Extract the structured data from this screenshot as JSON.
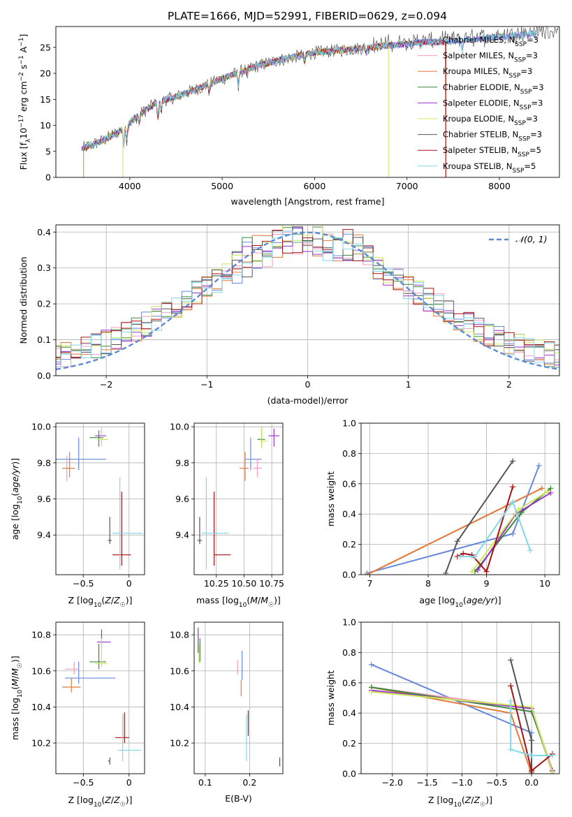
{
  "suptitle": "PLATE=1666, MJD=52991, FIBERID=0629, z=0.094",
  "colors": [
    "#6688dd",
    "#f49ac1",
    "#e07b39",
    "#3a8a3a",
    "#9932cc",
    "#ccea5a",
    "#555555",
    "#aa1111",
    "#7fd8e8"
  ],
  "chart_data": [
    {
      "id": "spectrum",
      "type": "line",
      "xlabel": "wavelength [Angstrom, rest frame]",
      "ylabel": "Flux [fλ10⁻¹⁷ erg cm⁻² s⁻¹ A⁻¹]",
      "xlim": [
        3200,
        8650
      ],
      "ylim": [
        0,
        29
      ],
      "xticks": [
        4000,
        5000,
        6000,
        7000,
        8000
      ],
      "yticks": [
        0,
        5,
        10,
        15,
        20,
        25
      ],
      "grid": false,
      "legend_position": "right",
      "series": [
        {
          "name": "Chabrier MILES, N_SSP=3"
        },
        {
          "name": "Salpeter MILES, N_SSP=3"
        },
        {
          "name": "Kroupa MILES, N_SSP=3"
        },
        {
          "name": "Chabrier ELODIE, N_SSP=3"
        },
        {
          "name": "Salpeter ELODIE, N_SSP=3"
        },
        {
          "name": "Kroupa ELODIE, N_SSP=3"
        },
        {
          "name": "Chabrier STELIB, N_SSP=3"
        },
        {
          "name": "Salpeter STELIB, N_SSP=5"
        },
        {
          "name": "Kroupa STELIB, N_SSP=5"
        }
      ],
      "continuum": {
        "x": [
          3480,
          3700,
          3900,
          4100,
          4300,
          4500,
          4800,
          5000,
          5300,
          5600,
          6000,
          6300,
          6600,
          6900,
          7200,
          7400,
          7700,
          8000,
          8300,
          8600
        ],
        "y": [
          5.5,
          7,
          9,
          12,
          14.5,
          15.5,
          17.5,
          19,
          21,
          22.5,
          24,
          24.5,
          25,
          25.5,
          26,
          26,
          26.5,
          27,
          27.5,
          28
        ]
      }
    },
    {
      "id": "residuals",
      "type": "line",
      "xlabel": "(data-model)/error",
      "ylabel": "Normed distribution",
      "xlim": [
        -2.5,
        2.5
      ],
      "ylim": [
        0,
        0.42
      ],
      "xticks": [
        -2,
        -1,
        0,
        1,
        2
      ],
      "yticks": [
        0.0,
        0.1,
        0.2,
        0.3,
        0.4
      ],
      "grid": true,
      "legend_position": "top-right",
      "legend_label": "𝒩(0, 1)"
    },
    {
      "id": "age_vs_Z",
      "type": "scatter",
      "xlabel": "Z [log₁₀(Z/Z☉)]",
      "ylabel": "age  [log₁₀(age/yr)]",
      "xlim": [
        -0.8,
        0.17
      ],
      "ylim": [
        9.18,
        10.02
      ],
      "xticks": [
        -0.5,
        0.0
      ],
      "yticks": [
        9.4,
        9.6,
        9.8,
        10.0
      ],
      "grid": true,
      "points": [
        {
          "x": -0.55,
          "y": 9.82,
          "xerr": [
            0.25,
            0.3
          ],
          "yerr": [
            0.06,
            0.12
          ]
        },
        {
          "x": -0.68,
          "y": 9.77,
          "xerr": [
            0.04,
            0.08
          ],
          "yerr": [
            0.07,
            0.07
          ]
        },
        {
          "x": -0.65,
          "y": 9.77,
          "xerr": [
            0.08,
            0.06
          ],
          "yerr": [
            0.05,
            0.09
          ]
        },
        {
          "x": -0.33,
          "y": 9.94,
          "xerr": [
            0.1,
            0.05
          ],
          "yerr": [
            0.05,
            0.04
          ]
        },
        {
          "x": -0.3,
          "y": 9.95,
          "xerr": [
            0.07,
            0.05
          ],
          "yerr": [
            0.04,
            0.04
          ]
        },
        {
          "x": -0.3,
          "y": 9.93,
          "xerr": [
            0.05,
            0.07
          ],
          "yerr": [
            0.04,
            0.07
          ]
        },
        {
          "x": -0.21,
          "y": 9.37,
          "xerr": [
            0.02,
            0.02
          ],
          "yerr": [
            0.02,
            0.13
          ]
        },
        {
          "x": -0.08,
          "y": 9.29,
          "xerr": [
            0.1,
            0.1
          ],
          "yerr": [
            0.06,
            0.35
          ]
        },
        {
          "x": -0.1,
          "y": 9.41,
          "xerr": [
            0.08,
            0.25
          ],
          "yerr": [
            0.2,
            0.31
          ]
        }
      ]
    },
    {
      "id": "age_vs_mass",
      "type": "scatter",
      "xlabel": "mass [log₁₀(M/M☉)]",
      "ylabel": "",
      "xlim": [
        10.05,
        10.85
      ],
      "ylim": [
        9.18,
        10.02
      ],
      "xticks": [
        10.25,
        10.5,
        10.75
      ],
      "yticklabels": [
        "9.4",
        "9.6",
        "9.8",
        "10.0"
      ],
      "xticklabels": [
        "10.25",
        "10.50",
        "10.75"
      ],
      "yticks": [
        9.4,
        9.6,
        9.8,
        10.0
      ],
      "grid": true,
      "points": [
        {
          "x": 10.56,
          "y": 9.82,
          "xerr": [
            0.05,
            0.1
          ],
          "yerr": [
            0.06,
            0.12
          ]
        },
        {
          "x": 10.62,
          "y": 9.77,
          "xerr": [
            0.04,
            0.04
          ],
          "yerr": [
            0.05,
            0.05
          ]
        },
        {
          "x": 10.51,
          "y": 9.77,
          "xerr": [
            0.05,
            0.03
          ],
          "yerr": [
            0.07,
            0.09
          ]
        },
        {
          "x": 10.66,
          "y": 9.93,
          "xerr": [
            0.04,
            0.03
          ],
          "yerr": [
            0.04,
            0.07
          ]
        },
        {
          "x": 10.77,
          "y": 9.95,
          "xerr": [
            0.05,
            0.05
          ],
          "yerr": [
            0.06,
            0.04
          ]
        },
        {
          "x": 10.66,
          "y": 9.92,
          "xerr": [
            0.02,
            0.05
          ],
          "yerr": [
            0.04,
            0.08
          ]
        },
        {
          "x": 10.1,
          "y": 9.37,
          "xerr": [
            0.02,
            0.02
          ],
          "yerr": [
            0.02,
            0.13
          ]
        },
        {
          "x": 10.23,
          "y": 9.29,
          "xerr": [
            0.0,
            0.15
          ],
          "yerr": [
            0.06,
            0.35
          ]
        },
        {
          "x": 10.16,
          "y": 9.41,
          "xerr": [
            0.04,
            0.2
          ],
          "yerr": [
            0.2,
            0.31
          ]
        }
      ]
    },
    {
      "id": "weight_vs_age",
      "type": "line",
      "xlabel": "age  [log₁₀(age/yr)]",
      "ylabel": "mass weight",
      "xlim": [
        6.85,
        10.25
      ],
      "ylim": [
        0,
        1
      ],
      "xticks": [
        7,
        8,
        9,
        10
      ],
      "yticks": [
        0.0,
        0.2,
        0.4,
        0.6,
        0.8,
        1.0
      ],
      "grid": true,
      "series": [
        {
          "x": [
            9.5,
            9.9,
            9.45
          ],
          "y": [
            0.27,
            0.72,
            0.28
          ],
          "path": [
            [
              6.95,
              0.01
            ],
            [
              9.45,
              0.27
            ],
            [
              9.9,
              0.72
            ]
          ]
        },
        {
          "path": [
            [
              6.95,
              0.0
            ],
            [
              9.95,
              0.57
            ]
          ]
        },
        {
          "path": [
            [
              6.95,
              0.0
            ],
            [
              9.95,
              0.57
            ]
          ]
        },
        {
          "path": [
            [
              8.8,
              0.02
            ],
            [
              9.6,
              0.41
            ],
            [
              10.1,
              0.57
            ]
          ]
        },
        {
          "path": [
            [
              8.85,
              0.03
            ],
            [
              9.5,
              0.4
            ],
            [
              10.1,
              0.54
            ]
          ]
        },
        {
          "path": [
            [
              8.75,
              0.02
            ],
            [
              9.55,
              0.43
            ],
            [
              10.05,
              0.55
            ]
          ]
        },
        {
          "path": [
            [
              8.3,
              0.01
            ],
            [
              8.5,
              0.22
            ],
            [
              9.45,
              0.75
            ]
          ]
        },
        {
          "path": [
            [
              8.5,
              0.12
            ],
            [
              8.6,
              0.14
            ],
            [
              8.75,
              0.13
            ],
            [
              9.0,
              0.02
            ],
            [
              9.45,
              0.58
            ]
          ]
        },
        {
          "path": [
            [
              8.55,
              0.12
            ],
            [
              8.8,
              0.12
            ],
            [
              9.45,
              0.48
            ],
            [
              9.75,
              0.16
            ]
          ]
        }
      ]
    },
    {
      "id": "mass_vs_Z",
      "type": "scatter",
      "xlabel": "Z [log₁₀(Z/Z☉)]",
      "ylabel": "mass [log₁₀(M/M☉)]",
      "xlim": [
        -0.8,
        0.17
      ],
      "ylim": [
        10.03,
        10.87
      ],
      "xticks": [
        -0.5,
        0.0
      ],
      "yticks": [
        10.2,
        10.4,
        10.6,
        10.8
      ],
      "grid": true,
      "points": [
        {
          "x": -0.55,
          "y": 10.56,
          "xerr": [
            0.15,
            0.4
          ],
          "yerr": [
            0.03,
            0.09
          ]
        },
        {
          "x": -0.6,
          "y": 10.61,
          "xerr": [
            0.1,
            0.05
          ],
          "yerr": [
            0.03,
            0.04
          ]
        },
        {
          "x": -0.63,
          "y": 10.51,
          "xerr": [
            0.1,
            0.1
          ],
          "yerr": [
            0.03,
            0.05
          ]
        },
        {
          "x": -0.33,
          "y": 10.65,
          "xerr": [
            0.1,
            0.08
          ],
          "yerr": [
            0.04,
            0.1
          ]
        },
        {
          "x": -0.3,
          "y": 10.76,
          "xerr": [
            0.05,
            0.1
          ],
          "yerr": [
            0.04,
            0.07
          ]
        },
        {
          "x": -0.3,
          "y": 10.64,
          "xerr": [
            0.07,
            0.06
          ],
          "yerr": [
            0.02,
            0.14
          ]
        },
        {
          "x": -0.21,
          "y": 10.1,
          "xerr": [
            0.02,
            0.0
          ],
          "yerr": [
            0.02,
            0.02
          ]
        },
        {
          "x": -0.05,
          "y": 10.23,
          "xerr": [
            0.1,
            0.05
          ],
          "yerr": [
            0.03,
            0.14
          ]
        },
        {
          "x": -0.07,
          "y": 10.16,
          "xerr": [
            0.05,
            0.2
          ],
          "yerr": [
            0.06,
            0.2
          ]
        }
      ]
    },
    {
      "id": "mass_vs_ebv",
      "type": "scatter",
      "xlabel": "E(B-V)",
      "ylabel": "",
      "xlim": [
        0.075,
        0.275
      ],
      "ylim": [
        10.03,
        10.87
      ],
      "xticks": [
        0.1,
        0.2
      ],
      "yticks": [
        10.2,
        10.4,
        10.6,
        10.8
      ],
      "grid": true,
      "points": [
        {
          "x": 0.183,
          "y": 10.6,
          "yerr": [
            0.05,
            0.11
          ]
        },
        {
          "x": 0.173,
          "y": 10.62,
          "yerr": [
            0.04,
            0.04
          ]
        },
        {
          "x": 0.181,
          "y": 10.5,
          "yerr": [
            0.04,
            0.05
          ]
        },
        {
          "x": 0.088,
          "y": 10.7,
          "yerr": [
            0.05,
            0.08
          ]
        },
        {
          "x": 0.084,
          "y": 10.74,
          "yerr": [
            0.04,
            0.1
          ]
        },
        {
          "x": 0.086,
          "y": 10.7,
          "yerr": [
            0.06,
            0.05
          ]
        },
        {
          "x": 0.268,
          "y": 10.09,
          "yerr": [
            0.02,
            0.03
          ]
        },
        {
          "x": 0.197,
          "y": 10.3,
          "yerr": [
            0.06,
            0.08
          ]
        },
        {
          "x": 0.193,
          "y": 10.23,
          "yerr": [
            0.13,
            0.13
          ]
        }
      ]
    },
    {
      "id": "weight_vs_Z",
      "type": "line",
      "xlabel": "Z [log₁₀(Z/Z☉)]",
      "ylabel": "mass weight",
      "xlim": [
        -2.45,
        0.4
      ],
      "ylim": [
        0,
        1
      ],
      "xticks": [
        -2.0,
        -1.5,
        -1.0,
        -0.5,
        0.0
      ],
      "yticks": [
        0.0,
        0.2,
        0.4,
        0.6,
        0.8,
        1.0
      ],
      "grid": true,
      "series": [
        {
          "path": [
            [
              -2.3,
              0.72
            ],
            [
              0.0,
              0.27
            ],
            [
              0.0,
              0.0
            ]
          ]
        },
        {
          "path": [
            [
              -2.3,
              0.57
            ],
            [
              0.0,
              0.43
            ],
            [
              0.3,
              0.0
            ]
          ]
        },
        {
          "path": [
            [
              -2.3,
              0.57
            ],
            [
              -0.3,
              0.4
            ],
            [
              0.0,
              0.0
            ]
          ]
        },
        {
          "path": [
            [
              -2.3,
              0.57
            ],
            [
              0.0,
              0.41
            ],
            [
              0.3,
              0.02
            ]
          ]
        },
        {
          "path": [
            [
              -2.3,
              0.55
            ],
            [
              0.0,
              0.43
            ],
            [
              0.3,
              0.02
            ]
          ]
        },
        {
          "path": [
            [
              -2.3,
              0.54
            ],
            [
              0.0,
              0.44
            ],
            [
              0.3,
              0.01
            ]
          ]
        },
        {
          "path": [
            [
              -0.3,
              0.75
            ],
            [
              0.0,
              0.22
            ],
            [
              0.0,
              0.01
            ]
          ]
        },
        {
          "path": [
            [
              -0.3,
              0.58
            ],
            [
              0.0,
              0.02
            ],
            [
              0.3,
              0.13
            ]
          ]
        },
        {
          "path": [
            [
              -0.3,
              0.48
            ],
            [
              -0.3,
              0.16
            ],
            [
              0.0,
              0.12
            ],
            [
              0.3,
              0.12
            ]
          ]
        }
      ]
    }
  ]
}
